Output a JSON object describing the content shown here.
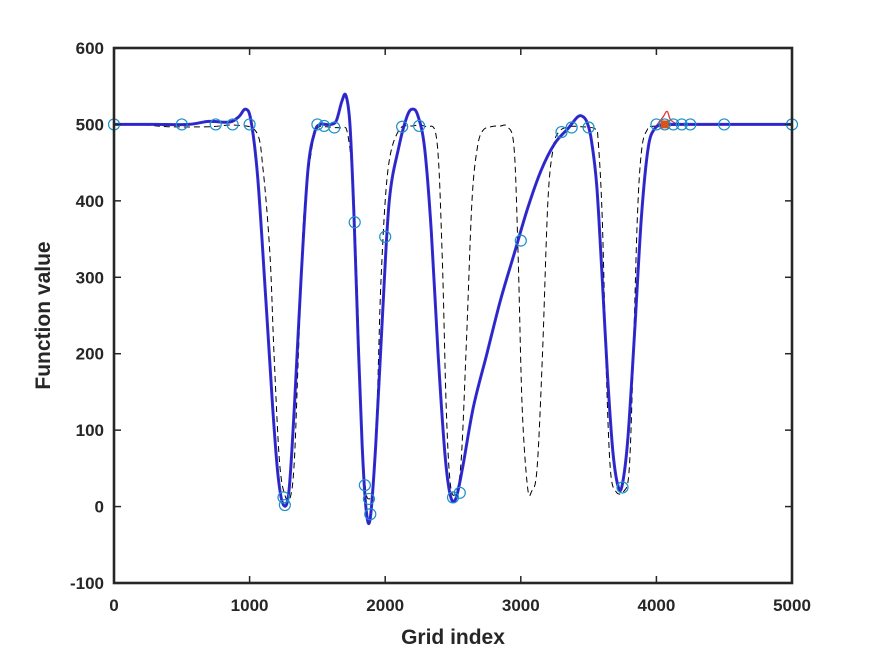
{
  "chart_data": {
    "type": "line",
    "title": "",
    "xlabel": "Grid index",
    "ylabel": "Function value",
    "xlim": [
      0,
      5000
    ],
    "ylim": [
      -100,
      600
    ],
    "xticks": [
      0,
      1000,
      2000,
      3000,
      4000,
      5000
    ],
    "yticks": [
      -100,
      0,
      100,
      200,
      300,
      400,
      500,
      600
    ],
    "grid": false,
    "legend": "none",
    "colors": {
      "blue_line": "#1f1fd0",
      "red_line": "#e8332b",
      "dashed_line": "#000000",
      "markers": "#1a8fc9",
      "orange_point": "#d95319",
      "axes": "#262626"
    },
    "series": [
      {
        "style": "dashed",
        "x": [
          0,
          200,
          400,
          700,
          900,
          1050,
          1100,
          1150,
          1180,
          1220,
          1260,
          1300,
          1330,
          1360,
          1400,
          1460,
          1500,
          1560,
          1620,
          1680,
          1720,
          1760,
          1790,
          1820,
          1850,
          1880,
          1910,
          1940,
          1970,
          2020,
          2100,
          2200,
          2300,
          2380,
          2420,
          2450,
          2480,
          2520,
          2560,
          2600,
          2640,
          2680,
          2720,
          2780,
          2850,
          2900,
          2950,
          2980,
          3010,
          3050,
          3080,
          3120,
          3160,
          3200,
          3240,
          3280,
          3350,
          3450,
          3550,
          3570,
          3600,
          3630,
          3660,
          3700,
          3760,
          3800,
          3830,
          3860,
          3890,
          3930,
          4000,
          4500,
          5000
        ],
        "y": [
          500,
          500,
          497,
          497,
          499,
          490,
          440,
          330,
          200,
          60,
          15,
          12,
          60,
          200,
          380,
          470,
          495,
          497,
          496,
          495,
          490,
          430,
          300,
          130,
          30,
          10,
          30,
          130,
          300,
          440,
          492,
          498,
          497,
          480,
          330,
          130,
          30,
          18,
          60,
          220,
          400,
          470,
          492,
          497,
          498,
          497,
          470,
          330,
          130,
          25,
          20,
          50,
          200,
          400,
          470,
          490,
          497,
          497,
          494,
          480,
          380,
          180,
          50,
          20,
          20,
          50,
          200,
          380,
          465,
          492,
          498,
          500,
          500
        ]
      },
      {
        "style": "solid-thin",
        "x": [
          0,
          300,
          550,
          700,
          850,
          920,
          970,
          1010,
          1060,
          1120,
          1170,
          1210,
          1250,
          1290,
          1330,
          1380,
          1430,
          1480,
          1520,
          1560,
          1600,
          1640,
          1680,
          1710,
          1740,
          1770,
          1800,
          1830,
          1860,
          1890,
          1930,
          1980,
          2030,
          2100,
          2160,
          2200,
          2240,
          2290,
          2340,
          2390,
          2440,
          2480,
          2520,
          2570,
          2650,
          2750,
          2850,
          2950,
          3050,
          3150,
          3250,
          3350,
          3420,
          3460,
          3490,
          3520,
          3560,
          3600,
          3640,
          3680,
          3720,
          3750,
          3790,
          3840,
          3890,
          3940,
          3990,
          4050,
          4080,
          4110,
          4200,
          4500,
          5000
        ],
        "y": [
          500,
          500,
          500,
          504,
          503,
          510,
          520,
          505,
          430,
          270,
          130,
          40,
          2,
          20,
          130,
          300,
          440,
          490,
          500,
          500,
          500,
          505,
          530,
          538,
          500,
          380,
          220,
          80,
          -5,
          -15,
          80,
          250,
          400,
          470,
          510,
          520,
          512,
          470,
          360,
          200,
          70,
          15,
          10,
          50,
          130,
          200,
          270,
          330,
          390,
          440,
          475,
          495,
          510,
          510,
          502,
          480,
          420,
          300,
          170,
          70,
          25,
          30,
          90,
          230,
          380,
          470,
          495,
          510,
          517,
          505,
          500,
          500,
          500
        ]
      },
      {
        "style": "solid-thick",
        "x": [
          0,
          300,
          550,
          700,
          850,
          920,
          970,
          1010,
          1060,
          1120,
          1170,
          1210,
          1250,
          1290,
          1330,
          1380,
          1430,
          1480,
          1520,
          1560,
          1600,
          1640,
          1680,
          1710,
          1740,
          1770,
          1800,
          1830,
          1860,
          1890,
          1930,
          1980,
          2030,
          2100,
          2160,
          2200,
          2240,
          2290,
          2340,
          2390,
          2440,
          2480,
          2520,
          2570,
          2650,
          2750,
          2850,
          2950,
          3050,
          3150,
          3250,
          3350,
          3420,
          3460,
          3490,
          3520,
          3560,
          3600,
          3640,
          3680,
          3720,
          3750,
          3790,
          3840,
          3890,
          3940,
          3990,
          4050,
          4080,
          4110,
          4200,
          4500,
          5000
        ],
        "y": [
          500,
          500,
          500,
          504,
          503,
          510,
          520,
          505,
          430,
          270,
          130,
          40,
          2,
          20,
          130,
          300,
          440,
          490,
          500,
          500,
          500,
          505,
          530,
          538,
          500,
          380,
          220,
          80,
          -5,
          -15,
          80,
          250,
          400,
          470,
          510,
          520,
          512,
          470,
          360,
          200,
          70,
          15,
          10,
          50,
          130,
          200,
          270,
          330,
          390,
          440,
          475,
          495,
          510,
          510,
          502,
          480,
          420,
          300,
          170,
          70,
          25,
          30,
          90,
          230,
          380,
          470,
          495,
          500,
          500,
          500,
          500,
          500,
          500
        ]
      },
      {
        "style": "markers-open-circle",
        "x": [
          0,
          500,
          750,
          875,
          1000,
          1250,
          1260,
          1500,
          1550,
          1625,
          1775,
          1850,
          1880,
          1890,
          2000,
          2125,
          2250,
          2500,
          2550,
          3000,
          3300,
          3375,
          3500,
          3750,
          4000,
          4062,
          4125,
          4187,
          4250,
          4500,
          5000
        ],
        "y": [
          500,
          500,
          500,
          500,
          500,
          12,
          2,
          500,
          498,
          496,
          372,
          28,
          10,
          -10,
          353,
          497,
          498,
          12,
          18,
          348,
          490,
          496,
          496,
          25,
          500,
          500,
          500,
          500,
          500,
          500,
          500
        ]
      },
      {
        "style": "marker-filled-square",
        "x": [
          4062
        ],
        "y": [
          500
        ]
      }
    ]
  }
}
